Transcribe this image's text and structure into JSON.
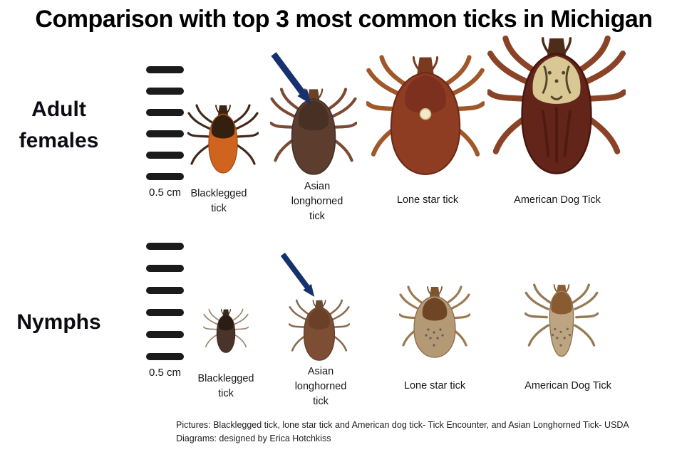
{
  "title": "Comparison with top 3 most common ticks in Michigan",
  "colors": {
    "arrow": "#17316e",
    "ink": "#1b1b1b"
  },
  "rows": [
    {
      "label_lines": [
        "Adult",
        "females"
      ],
      "scale_label": "0.5 cm",
      "ticks": [
        {
          "name_lines": [
            "Blacklegged",
            "tick"
          ],
          "art": {
            "shape": "slim",
            "legs": "#42281a",
            "legWidth": 3.2,
            "body": "#d0641f",
            "bodyStroke": "#a54a14",
            "scutum": "#33200f",
            "cap": "#3a2414"
          }
        },
        {
          "name_lines": [
            "Asian",
            "longhorned",
            "tick"
          ],
          "arrow": true,
          "art": {
            "shape": "tear",
            "legs": "#7a4a33",
            "legWidth": 3.4,
            "body": "#5c3d2e",
            "bodyStroke": "#44302a",
            "scutum": "#483124",
            "cap": "#6b4226"
          }
        },
        {
          "name_lines": [
            "Lone star tick"
          ],
          "art": {
            "shape": "round",
            "legs": "#a0582a",
            "legWidth": 3.8,
            "body": "#8e3c22",
            "bodyStroke": "#6d2a16",
            "scutum": "#7c301d",
            "cap": "#7a3a20",
            "ornament": "dot"
          }
        },
        {
          "name_lines": [
            "American Dog Tick"
          ],
          "art": {
            "shape": "tear",
            "legs": "#8a4326",
            "legWidth": 4.2,
            "body": "#63251a",
            "bodyStroke": "#471710",
            "scutum": "#d9c894",
            "cap": "#4e2c1a",
            "ornament": "ornate",
            "streaks": "#3a120b"
          }
        }
      ]
    },
    {
      "label_lines": [
        "Nymphs"
      ],
      "scale_label": "0.5 cm",
      "ticks": [
        {
          "name_lines": [
            "Blacklegged",
            "tick"
          ],
          "art": {
            "shape": "slim",
            "legs": "#9b8770",
            "legWidth": 2.7,
            "body": "#4a342a",
            "bodyStroke": "#32221a",
            "scutum": "#2c1d14",
            "cap": "#3a2a1e"
          }
        },
        {
          "name_lines": [
            "Asian",
            "longhorned",
            "tick"
          ],
          "arrow": true,
          "art": {
            "shape": "tear",
            "legs": "#8a6a4e",
            "legWidth": 3,
            "body": "#7d4e33",
            "bodyStroke": "#5e3a26",
            "scutum": "#6b4029",
            "cap": "#6b4a32"
          }
        },
        {
          "name_lines": [
            "Lone star tick"
          ],
          "art": {
            "shape": "round",
            "legs": "#9b7a52",
            "legWidth": 3.2,
            "body": "#b49a74",
            "bodyStroke": "#8a6a48",
            "scutum": "#6f4526",
            "cap": "#7a5530",
            "speckles": "#565064"
          }
        },
        {
          "name_lines": [
            "American Dog Tick"
          ],
          "art": {
            "shape": "narrow",
            "legs": "#967a56",
            "legWidth": 3.2,
            "body": "#bda581",
            "bodyStroke": "#8f7350",
            "scutum": "#8a5a30",
            "cap": "#8a5c32",
            "speckles": "#6d5a42"
          }
        }
      ]
    }
  ],
  "credits": [
    "Pictures: Blacklegged tick, lone star tick and American dog tick- Tick Encounter, and Asian Longhorned Tick- USDA",
    "Diagrams: designed by Erica Hotchkiss"
  ]
}
